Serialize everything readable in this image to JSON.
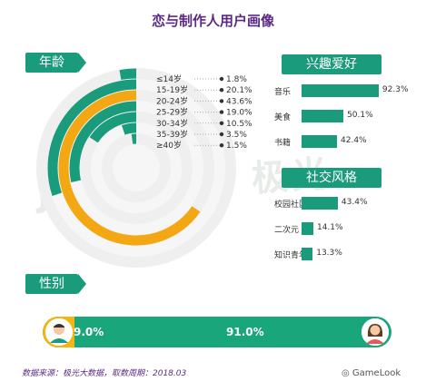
{
  "title": "恋与制作人用户画像",
  "watermark": "JIGUANG 极光",
  "sections": {
    "age": "年龄",
    "interest": "兴趣爱好",
    "social": "社交风格",
    "gender": "性别"
  },
  "chart_data": [
    {
      "type": "bar",
      "title": "年龄",
      "categories": [
        "≤14岁",
        "15-19岁",
        "20-24岁",
        "25-29岁",
        "30-34岁",
        "35-39岁",
        "≥40岁"
      ],
      "values": [
        1.8,
        20.1,
        43.6,
        19.0,
        10.5,
        3.5,
        1.5
      ],
      "value_labels": [
        "1.8%",
        "20.1%",
        "43.6%",
        "19.0%",
        "10.5%",
        "3.5%",
        "1.5%"
      ],
      "highlight_color": "#f3a712",
      "series_color": "#1a9b7c"
    },
    {
      "type": "bar",
      "title": "兴趣爱好",
      "categories": [
        "音乐",
        "美食",
        "书籍"
      ],
      "values": [
        92.3,
        50.1,
        42.4
      ],
      "value_labels": [
        "92.3%",
        "50.1%",
        "42.4%"
      ]
    },
    {
      "type": "bar",
      "title": "社交风格",
      "categories": [
        "校园社区",
        "二次元",
        "知识青年"
      ],
      "values": [
        43.4,
        14.1,
        13.3
      ],
      "value_labels": [
        "43.4%",
        "14.1%",
        "13.3%"
      ]
    },
    {
      "type": "bar",
      "title": "性别",
      "categories": [
        "male",
        "female"
      ],
      "values": [
        9.0,
        91.0
      ],
      "value_labels": [
        "9.0%",
        "91.0%"
      ]
    }
  ],
  "colors": {
    "green": "#1a9b7c",
    "orange": "#f3a712",
    "title": "#5b2a86"
  },
  "footnote": "数据来源：极光大数据，取数周期：2018.03",
  "brand": "GameLook"
}
